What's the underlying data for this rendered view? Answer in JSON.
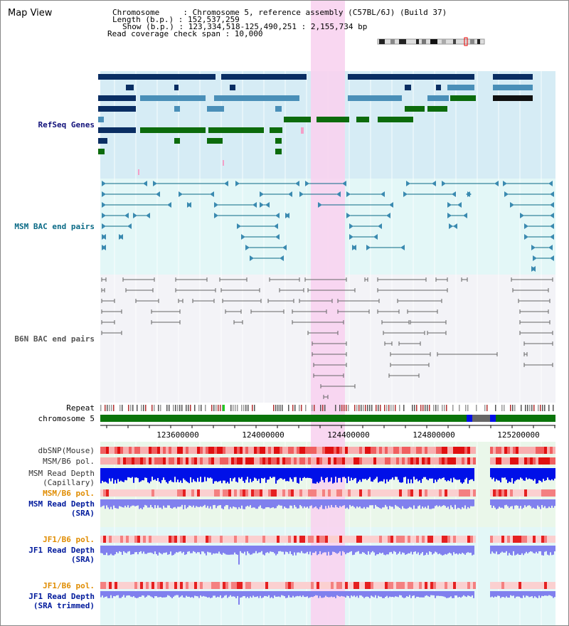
{
  "view_title": "Map View",
  "info": {
    "chromosome": "Chromosome     : Chromosome 5, reference assembly (C57BL/6J) (Build 37)",
    "length": "Length (b.p.) : 152,537,259",
    "show": "Show (b.p.) : 123,334,518-125,490,251 : 2,155,734 bp",
    "coverage": "Read coverage check span : 10,000"
  },
  "tracks": {
    "refseq": "RefSeq Genes",
    "msm_bac": "MSM BAC end pairs",
    "b6n_bac": "B6N BAC end pairs",
    "repeat": "Repeat",
    "chromosome": "chromosome 5",
    "dbsnp": "dbSNP(Mouse)",
    "msm_b6_pol_1": "MSM/B6 pol.",
    "msm_depth_cap": "MSM Read Depth\n(Capillary)",
    "msm_b6_pol_2": "MSM/B6 pol.",
    "msm_depth_sra": "MSM Read Depth\n(SRA)",
    "jf1_b6_pol_1": "JF1/B6 pol.",
    "jf1_depth_sra": "JF1 Read Depth\n(SRA)",
    "jf1_b6_pol_2": "JF1/B6 pol.",
    "jf1_depth_trim": "JF1 Read Depth\n(SRA trimmed)"
  },
  "ruler": {
    "ticks": [
      "123600000",
      "124000000",
      "124400000",
      "124800000",
      "125200000"
    ]
  },
  "colors": {
    "refseq_bg": "#d6ecf5",
    "msm_bg": "#e3f7f7",
    "b6n_bg": "#f3f3f7",
    "highlight": "#f8d3ef",
    "gene_dark": "#0a2e63",
    "gene_mid": "#4a8fb8",
    "gene_green": "#0c6b0c",
    "chrom_green": "#0a740a",
    "depth_blue": "#0010e8",
    "depth_light": "#8080ee"
  }
}
